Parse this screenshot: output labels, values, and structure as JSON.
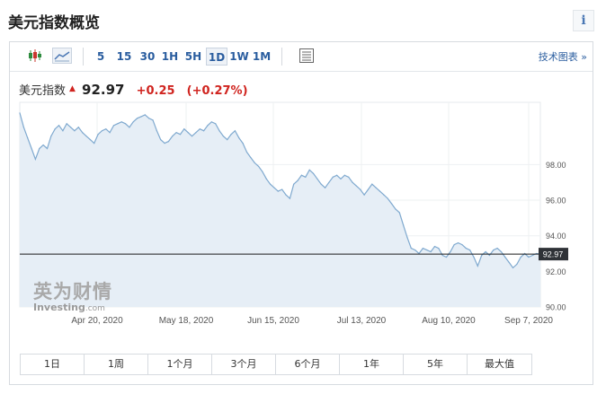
{
  "page": {
    "title": "美元指数概览",
    "info_icon": "info-icon",
    "info_label": "i"
  },
  "toolbar": {
    "icons": [
      "candlestick-icon",
      "line-chart-icon"
    ],
    "timeframes": [
      "5",
      "15",
      "30",
      "1H",
      "5H",
      "1D",
      "1W",
      "1M"
    ],
    "selected_timeframe": "1D",
    "settings_icon": "table-icon",
    "advanced_link": "技术图表 »"
  },
  "quote": {
    "name": "美元指数",
    "direction_icon": "up-arrow-icon",
    "price": "92.97",
    "change": "+0.25",
    "change_pct": "(+0.27%)",
    "up_color": "#d0241f"
  },
  "watermark": {
    "cn": "英为财情",
    "en": "Investing",
    "en_suffix": ".com"
  },
  "ranges": [
    "1日",
    "1周",
    "1个月",
    "3个月",
    "6个月",
    "1年",
    "5年",
    "最大值"
  ],
  "chart_data": {
    "type": "area",
    "x_tick_labels": [
      "Apr 20, 2020",
      "May 18, 2020",
      "Jun 15, 2020",
      "Jul 13, 2020",
      "Aug 10, 2020",
      "Sep 7, 2020"
    ],
    "y_tick_labels": [
      "90.00",
      "92.00",
      "94.00",
      "96.00",
      "98.00"
    ],
    "ylim": [
      90,
      101.5
    ],
    "current_value": 92.97,
    "current_label": "92.97",
    "line_color": "#7fa9cf",
    "fill_color": "#e6eef6",
    "grid": true,
    "series": [
      {
        "values": [
          100.9,
          100.1,
          99.5,
          98.9,
          98.3,
          98.9,
          99.1,
          98.9,
          99.6,
          100.0,
          100.2,
          99.9,
          100.3,
          100.1,
          99.9,
          100.1,
          99.8,
          99.6,
          99.4,
          99.2,
          99.7,
          99.9,
          100.0,
          99.8,
          100.2,
          100.3,
          100.4,
          100.3,
          100.1,
          100.4,
          100.6,
          100.7,
          100.8,
          100.6,
          100.5,
          99.9,
          99.4,
          99.2,
          99.3,
          99.6,
          99.8,
          99.7,
          100.0,
          99.8,
          99.6,
          99.8,
          100.0,
          99.9,
          100.2,
          100.4,
          100.3,
          99.9,
          99.6,
          99.4,
          99.7,
          99.9,
          99.5,
          99.2,
          98.7,
          98.4,
          98.1,
          97.9,
          97.6,
          97.2,
          96.9,
          96.7,
          96.5,
          96.6,
          96.3,
          96.1,
          96.9,
          97.1,
          97.4,
          97.3,
          97.7,
          97.5,
          97.2,
          96.9,
          96.7,
          97.0,
          97.3,
          97.4,
          97.2,
          97.4,
          97.3,
          97.0,
          96.8,
          96.6,
          96.3,
          96.6,
          96.9,
          96.7,
          96.5,
          96.3,
          96.1,
          95.8,
          95.5,
          95.3,
          94.6,
          93.9,
          93.3,
          93.2,
          93.0,
          93.3,
          93.2,
          93.1,
          93.4,
          93.3,
          92.9,
          92.8,
          93.1,
          93.5,
          93.6,
          93.5,
          93.3,
          93.2,
          92.8,
          92.3,
          92.9,
          93.1,
          92.9,
          93.2,
          93.3,
          93.1,
          92.8,
          92.5,
          92.2,
          92.4,
          92.8,
          93.0,
          92.8,
          92.9,
          93.0,
          92.97
        ]
      }
    ]
  }
}
